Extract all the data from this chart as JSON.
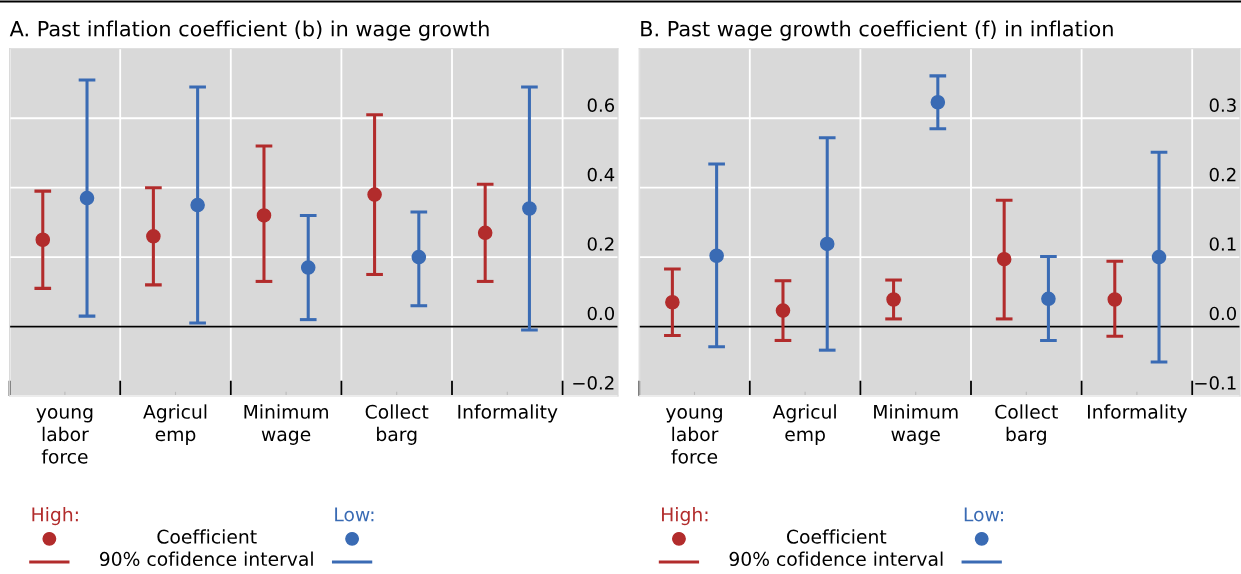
{
  "chart_data": [
    {
      "type": "scatter",
      "title": "A. Past inflation coefficient (b) in wage growth",
      "categories": [
        "young\nlabor\nforce",
        "Agricul\nemp",
        "Minimum\nwage",
        "Collect\nbarg",
        "Informality"
      ],
      "series": [
        {
          "name": "High:",
          "color": "#b22c2c",
          "values": [
            0.25,
            0.26,
            0.32,
            0.38,
            0.27
          ],
          "errors": [
            [
              0.11,
              0.39
            ],
            [
              0.12,
              0.4
            ],
            [
              0.13,
              0.52
            ],
            [
              0.15,
              0.61
            ],
            [
              0.13,
              0.41
            ]
          ]
        },
        {
          "name": "Low:",
          "color": "#3a6bb4",
          "values": [
            0.37,
            0.35,
            0.17,
            0.2,
            0.34
          ],
          "errors": [
            [
              0.03,
              0.71
            ],
            [
              0.01,
              0.69
            ],
            [
              0.02,
              0.32
            ],
            [
              0.06,
              0.33
            ],
            [
              -0.01,
              0.69
            ]
          ]
        }
      ],
      "ylim": [
        -0.2,
        0.8
      ],
      "yticks": [
        {
          "value": -0.2,
          "label": "−0.2"
        },
        {
          "value": 0,
          "label": "0.0"
        },
        0.2,
        0.4,
        0.6
      ],
      "ref_lines": [
        {
          "axis": "y",
          "value": 0,
          "color": "#000000"
        }
      ],
      "annotations": [
        "Coefficient",
        "90% cofidence interval"
      ],
      "marker": "circle",
      "grid": true,
      "legend": "bottom"
    },
    {
      "type": "scatter",
      "title": "B. Past wage growth coefficient (f) in inflation",
      "categories": [
        "young\nlabor\nforce",
        "Agricul\nemp",
        "Minimum\nwage",
        "Collect\nbarg",
        "Informality"
      ],
      "series": [
        {
          "name": "High:",
          "color": "#b22c2c",
          "values": [
            0.035,
            0.023,
            0.039,
            0.097,
            0.039
          ],
          "errors": [
            [
              -0.013,
              0.083
            ],
            [
              -0.02,
              0.066
            ],
            [
              0.011,
              0.067
            ],
            [
              0.011,
              0.182
            ],
            [
              -0.014,
              0.094
            ]
          ]
        },
        {
          "name": "Low:",
          "color": "#3a6bb4",
          "values": [
            0.102,
            0.119,
            0.323,
            0.04,
            0.1
          ],
          "errors": [
            [
              -0.029,
              0.234
            ],
            [
              -0.034,
              0.272
            ],
            [
              0.285,
              0.361
            ],
            [
              -0.02,
              0.101
            ],
            [
              -0.051,
              0.251
            ]
          ]
        }
      ],
      "ylim": [
        -0.1,
        0.4
      ],
      "yticks": [
        {
          "value": -0.1,
          "label": "−0.1"
        },
        {
          "value": 0,
          "label": "0.0"
        },
        0.1,
        0.2,
        0.3
      ],
      "ref_lines": [
        {
          "axis": "y",
          "value": 0,
          "color": "#000000"
        }
      ],
      "annotations": [
        "Coefficient",
        "90% cofidence interval"
      ],
      "marker": "circle",
      "grid": true,
      "legend": "bottom"
    }
  ]
}
